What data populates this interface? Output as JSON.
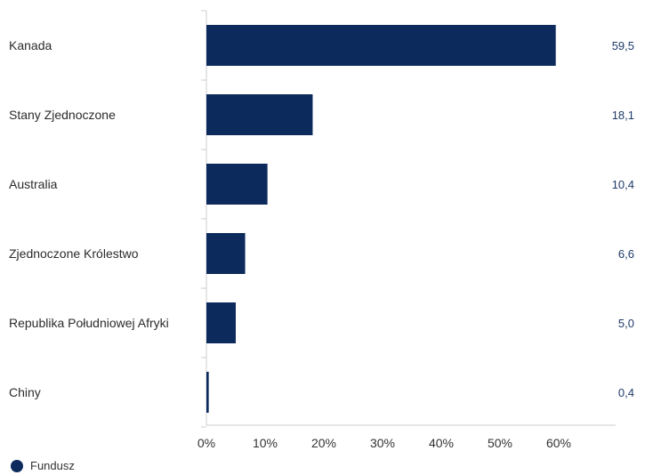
{
  "chart_data": {
    "type": "bar",
    "orientation": "horizontal",
    "categories": [
      "Kanada",
      "Stany Zjednoczone",
      "Australia",
      "Zjednoczone Królestwo",
      "Republika Południowej Afryki",
      "Chiny"
    ],
    "series": [
      {
        "name": "Fundusz",
        "values": [
          59.5,
          18.1,
          10.4,
          6.6,
          5.0,
          0.4
        ],
        "value_labels": [
          "59,5",
          "18,1",
          "10,4",
          "6,6",
          "5,0",
          "0,4"
        ]
      }
    ],
    "x_ticks": [
      0,
      10,
      20,
      30,
      40,
      50,
      60
    ],
    "x_tick_labels": [
      "0%",
      "10%",
      "20%",
      "30%",
      "40%",
      "50%",
      "60%"
    ],
    "xlim": [
      0,
      70
    ],
    "grid": false,
    "legend_position": "bottom-left",
    "colors": {
      "bar": "#0c2b5c",
      "value_text": "#1f3a68",
      "axis": "#cccccc"
    }
  }
}
